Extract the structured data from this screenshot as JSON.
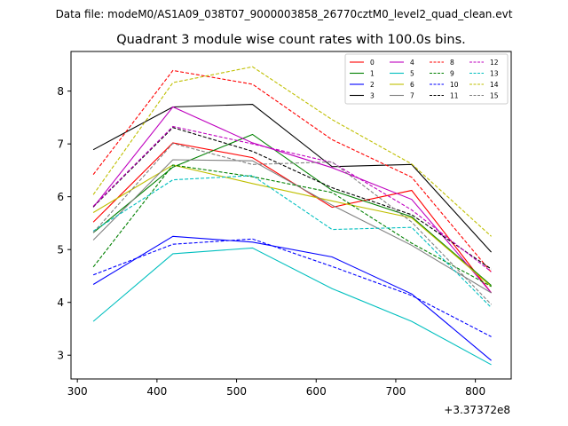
{
  "chart_data": {
    "type": "line",
    "suptitle": "Data file: modeM0/AS1A09_038T07_9000003858_26770cztM0_level2_quad_clean.evt",
    "title": "Quadrant 3 module wise count rates with 100.0s bins.",
    "xlabel": "",
    "ylabel": "",
    "x_offset_label": "+3.37372e8",
    "x": [
      320,
      420,
      520,
      620,
      720,
      820
    ],
    "xlim": [
      292,
      845
    ],
    "ylim": [
      2.55,
      8.75
    ],
    "xticks": [
      300,
      400,
      500,
      600,
      700,
      800
    ],
    "yticks": [
      3,
      4,
      5,
      6,
      7,
      8
    ],
    "grid": false,
    "legend_position": "top-right",
    "series": [
      {
        "name": "0",
        "color": "#ff0000",
        "dash": "solid",
        "values": [
          5.52,
          7.02,
          6.74,
          5.8,
          6.12,
          4.18
        ]
      },
      {
        "name": "1",
        "color": "#008000",
        "dash": "solid",
        "values": [
          5.32,
          6.56,
          7.18,
          6.12,
          5.62,
          4.32
        ]
      },
      {
        "name": "2",
        "color": "#0000ff",
        "dash": "solid",
        "values": [
          4.34,
          5.25,
          5.14,
          4.86,
          4.16,
          2.9
        ]
      },
      {
        "name": "3",
        "color": "#000000",
        "dash": "solid",
        "values": [
          6.89,
          7.7,
          7.75,
          6.57,
          6.61,
          4.95
        ]
      },
      {
        "name": "4",
        "color": "#bf00bf",
        "dash": "solid",
        "values": [
          5.8,
          7.7,
          7.02,
          6.55,
          5.95,
          4.18
        ]
      },
      {
        "name": "5",
        "color": "#00bfbf",
        "dash": "solid",
        "values": [
          3.64,
          4.92,
          5.03,
          4.26,
          3.64,
          2.82
        ]
      },
      {
        "name": "6",
        "color": "#bfbf00",
        "dash": "solid",
        "values": [
          5.7,
          6.6,
          6.25,
          5.92,
          5.6,
          4.3
        ]
      },
      {
        "name": "7",
        "color": "#808080",
        "dash": "solid",
        "values": [
          5.18,
          6.7,
          6.68,
          5.84,
          5.08,
          4.18
        ]
      },
      {
        "name": "8",
        "color": "#ff0000",
        "dash": "dashed",
        "values": [
          6.42,
          8.39,
          8.13,
          7.08,
          6.37,
          4.57
        ]
      },
      {
        "name": "9",
        "color": "#008000",
        "dash": "dashed",
        "values": [
          4.67,
          6.6,
          6.38,
          6.08,
          5.12,
          4.3
        ]
      },
      {
        "name": "10",
        "color": "#0000ff",
        "dash": "dashed",
        "values": [
          4.52,
          5.1,
          5.2,
          4.68,
          4.13,
          3.35
        ]
      },
      {
        "name": "11",
        "color": "#000000",
        "dash": "dashed",
        "values": [
          5.81,
          7.31,
          6.86,
          6.17,
          5.66,
          4.63
        ]
      },
      {
        "name": "12",
        "color": "#bf00bf",
        "dash": "dashed",
        "values": [
          5.82,
          7.33,
          7.0,
          6.65,
          5.75,
          4.58
        ]
      },
      {
        "name": "13",
        "color": "#00bfbf",
        "dash": "dashed",
        "values": [
          5.35,
          6.32,
          6.4,
          5.38,
          5.42,
          3.9
        ]
      },
      {
        "name": "14",
        "color": "#bfbf00",
        "dash": "dashed",
        "values": [
          6.04,
          8.16,
          8.46,
          7.46,
          6.62,
          5.25
        ]
      },
      {
        "name": "15",
        "color": "#808080",
        "dash": "dashed",
        "values": [
          5.32,
          7.01,
          6.61,
          6.66,
          5.52,
          3.96
        ]
      }
    ]
  }
}
